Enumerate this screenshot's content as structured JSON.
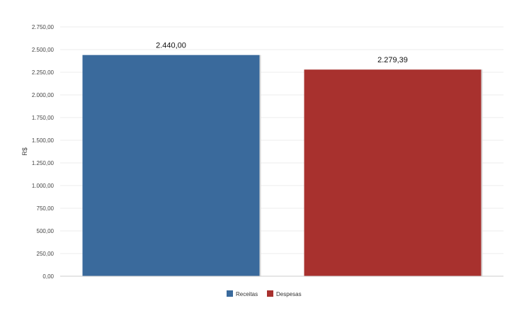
{
  "chart_data": {
    "type": "bar",
    "ylabel": "R$",
    "ylim": [
      0,
      2750
    ],
    "grid": true,
    "legend_position": "bottom-center",
    "y_ticks": [
      {
        "value": 0,
        "label": "0,00"
      },
      {
        "value": 250,
        "label": "250,00"
      },
      {
        "value": 500,
        "label": "500,00"
      },
      {
        "value": 750,
        "label": "750,00"
      },
      {
        "value": 1000,
        "label": "1.000,00"
      },
      {
        "value": 1250,
        "label": "1.250,00"
      },
      {
        "value": 1500,
        "label": "1.500,00"
      },
      {
        "value": 1750,
        "label": "1.750,00"
      },
      {
        "value": 2000,
        "label": "2.000,00"
      },
      {
        "value": 2250,
        "label": "2.250,00"
      },
      {
        "value": 2500,
        "label": "2.500,00"
      },
      {
        "value": 2750,
        "label": "2.750,00"
      }
    ],
    "series": [
      {
        "name": "Receitas",
        "value": 2440.0,
        "label": "2.440,00",
        "color": "#3a6a9c"
      },
      {
        "name": "Despesas",
        "value": 2279.39,
        "label": "2.279,39",
        "color": "#a8312e"
      }
    ]
  }
}
